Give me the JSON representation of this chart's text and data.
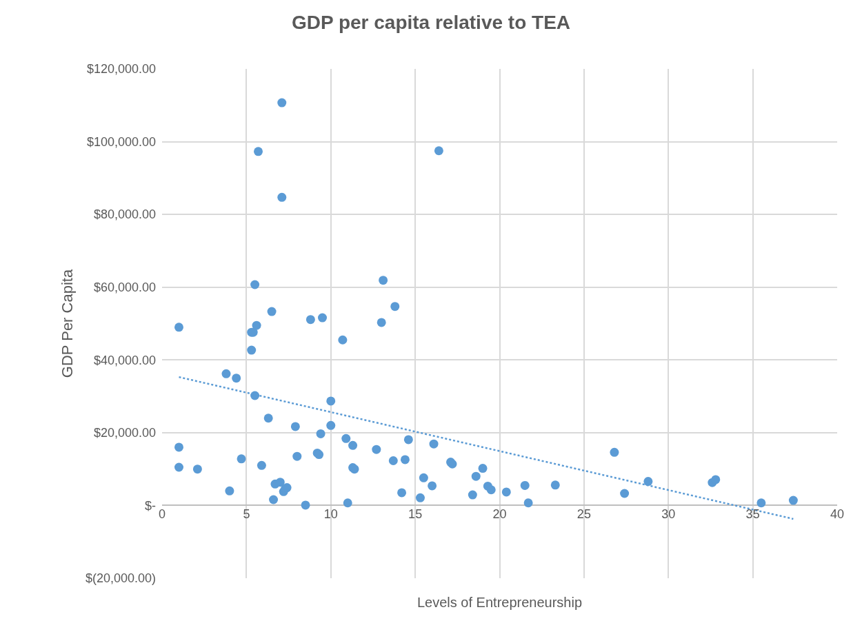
{
  "chart_data": {
    "type": "scatter",
    "title": "GDP per capita relative to TEA",
    "xlabel": "Levels of Entrepreneurship",
    "ylabel": "GDP Per Capita",
    "xlim": [
      0,
      40
    ],
    "xticks": [
      0,
      5,
      10,
      15,
      20,
      25,
      30,
      35,
      40
    ],
    "ylim": [
      -20000,
      120000
    ],
    "yticks": [
      {
        "value": -20000,
        "label": "$(20,000.00)"
      },
      {
        "value": 0,
        "label": "$-"
      },
      {
        "value": 20000,
        "label": "$20,000.00"
      },
      {
        "value": 40000,
        "label": "$40,000.00"
      },
      {
        "value": 60000,
        "label": "$60,000.00"
      },
      {
        "value": 80000,
        "label": "$80,000.00"
      },
      {
        "value": 100000,
        "label": "$100,000.00"
      },
      {
        "value": 120000,
        "label": "$120,000.00"
      }
    ],
    "grid": true,
    "marker": "circle",
    "series": [
      {
        "color": "#5b9bd5",
        "x": [
          1.0,
          1.0,
          1.0,
          2.1,
          3.8,
          4.4,
          4.0,
          4.7,
          5.3,
          5.3,
          5.4,
          5.6,
          5.5,
          5.7,
          5.5,
          5.9,
          6.3,
          6.5,
          6.6,
          6.7,
          7.0,
          7.1,
          7.1,
          7.2,
          7.3,
          7.4,
          7.9,
          8.0,
          8.5,
          8.8,
          9.2,
          9.3,
          9.4,
          9.5,
          10.0,
          10.0,
          10.7,
          10.9,
          11.0,
          11.3,
          11.3,
          11.4,
          12.7,
          13.0,
          13.1,
          13.7,
          13.8,
          14.2,
          14.4,
          14.6,
          15.3,
          15.5,
          16.0,
          16.1,
          16.4,
          17.1,
          17.2,
          18.4,
          18.6,
          19.0,
          19.3,
          19.5,
          20.4,
          21.5,
          21.7,
          23.3,
          26.8,
          27.4,
          28.8,
          32.6,
          32.8,
          35.5,
          37.4
        ],
        "values": [
          49000,
          16000,
          10500,
          10000,
          36200,
          35000,
          4000,
          12800,
          42700,
          47600,
          47600,
          49500,
          60700,
          97300,
          30200,
          11000,
          24000,
          53300,
          1600,
          5900,
          6400,
          110700,
          84700,
          3800,
          4600,
          4900,
          21700,
          13500,
          100,
          51100,
          14400,
          14000,
          19700,
          51600,
          28700,
          22000,
          45500,
          18400,
          700,
          16500,
          10400,
          10000,
          15400,
          50300,
          61900,
          12300,
          54700,
          3500,
          12600,
          18100,
          2100,
          7600,
          5400,
          16900,
          97500,
          11900,
          11400,
          2900,
          8000,
          10200,
          5300,
          4300,
          3700,
          5500,
          700,
          5600,
          14600,
          3300,
          6600,
          6300,
          7100,
          700,
          1400
        ]
      },
      {
        "type": "line",
        "color": "#5b9bd5",
        "line_style": "dotted",
        "marker": "none",
        "x": [
          1.0,
          37.4
        ],
        "values": [
          35300,
          -3700
        ]
      }
    ]
  }
}
